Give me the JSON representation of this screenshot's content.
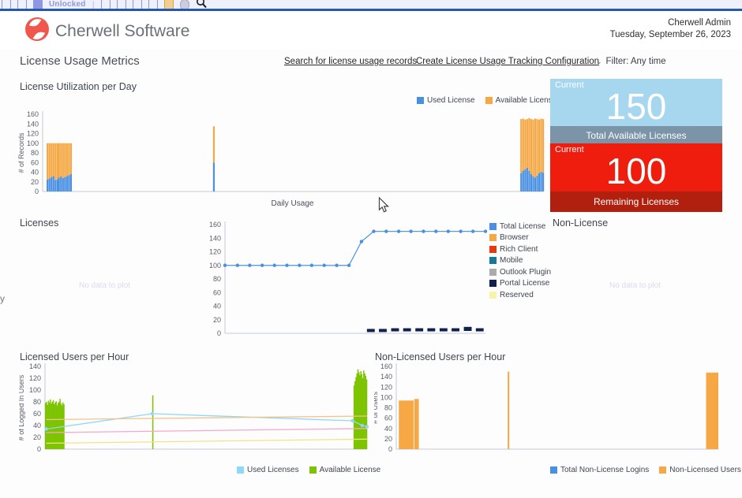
{
  "toolbar": {
    "unlocked_label": "Unlocked",
    "icons": [
      "document-icon",
      "trash-icon",
      "lock-icon",
      "scissors-icon",
      "copy-icon",
      "paste-icon",
      "columns-icon",
      "palette-icon",
      "globe-icon",
      "search-icon"
    ]
  },
  "header": {
    "brand": "Cherwell Software",
    "user": "Cherwell Admin",
    "date": "Tuesday, September 26, 2023"
  },
  "page": {
    "title": "License Usage Metrics",
    "links": [
      "Search for license usage records",
      "Create License Usage Tracking Configuration"
    ],
    "filter_label": "Filter: Any time"
  },
  "sections": {
    "utilization": "License Utilization per Day",
    "licenses": "Licenses",
    "non_license": "Non-License",
    "licensed_users": "Licensed Users per Hour",
    "non_licensed_users": "Non-Licensed Users per Hour"
  },
  "metrics": {
    "total_available": {
      "tag": "Current",
      "value": "150",
      "label": "Total Available Licenses",
      "bg": "#a6d7ef",
      "footer_bg": "#7b94a8"
    },
    "remaining": {
      "tag": "Current",
      "value": "100",
      "label": "Remaining Licenses",
      "bg": "#ee1d0d",
      "footer_bg": "#b1200e"
    }
  },
  "no_data_text": "No data to plot",
  "stray": {
    "glyph": "ᵠ",
    "y": "y"
  },
  "colors": {
    "accent_rule": "#2458b3",
    "used_blue": "#4a90e2",
    "available_orange": "#f5a843",
    "green": "#7dc400",
    "cyan": "#8ed8f8",
    "navy": "#12204f"
  },
  "chart_data": [
    {
      "id": "license-utilization",
      "type": "bar",
      "title": "License Utilization per Day",
      "xlabel": "Daily Usage",
      "ylabel": "# of Records",
      "ylim": [
        0,
        160
      ],
      "ytick_step": 20,
      "grid": false,
      "legend": [
        {
          "label": "Used License",
          "color": "#4a90e2"
        },
        {
          "label": "Available Licenses",
          "color": "#f5a843"
        }
      ],
      "stacked_bars": [
        {
          "pos": 0.008,
          "used": 25,
          "total": 100
        },
        {
          "pos": 0.012,
          "used": 27,
          "total": 100
        },
        {
          "pos": 0.016,
          "used": 30,
          "total": 100
        },
        {
          "pos": 0.02,
          "used": 32,
          "total": 100
        },
        {
          "pos": 0.024,
          "used": 24,
          "total": 100
        },
        {
          "pos": 0.028,
          "used": 25,
          "total": 100
        },
        {
          "pos": 0.031,
          "used": 29,
          "total": 100
        },
        {
          "pos": 0.035,
          "used": 31,
          "total": 100
        },
        {
          "pos": 0.039,
          "used": 28,
          "total": 100
        },
        {
          "pos": 0.043,
          "used": 30,
          "total": 100
        },
        {
          "pos": 0.047,
          "used": 32,
          "total": 100
        },
        {
          "pos": 0.051,
          "used": 34,
          "total": 100
        },
        {
          "pos": 0.055,
          "used": 36,
          "total": 100
        },
        {
          "pos": 0.341,
          "used": 60,
          "total": 135
        },
        {
          "pos": 0.956,
          "used": 38,
          "total": 150
        },
        {
          "pos": 0.96,
          "used": 43,
          "total": 151
        },
        {
          "pos": 0.964,
          "used": 46,
          "total": 149
        },
        {
          "pos": 0.968,
          "used": 49,
          "total": 150
        },
        {
          "pos": 0.972,
          "used": 43,
          "total": 152
        },
        {
          "pos": 0.976,
          "used": 36,
          "total": 150
        },
        {
          "pos": 0.98,
          "used": 31,
          "total": 149
        },
        {
          "pos": 0.984,
          "used": 29,
          "total": 151
        },
        {
          "pos": 0.988,
          "used": 33,
          "total": 150
        },
        {
          "pos": 0.992,
          "used": 38,
          "total": 149
        },
        {
          "pos": 0.996,
          "used": 41,
          "total": 151
        },
        {
          "pos": 1.0,
          "used": 39,
          "total": 150
        }
      ]
    },
    {
      "id": "licenses",
      "type": "line",
      "title": "Licenses",
      "ylim": [
        0,
        160
      ],
      "ytick_step": 20,
      "grid": false,
      "legend_position": "right",
      "legend": [
        {
          "label": "Total License",
          "color": "#4a90e2"
        },
        {
          "label": "Browser",
          "color": "#f5a843"
        },
        {
          "label": "Rich Client",
          "color": "#e8390e"
        },
        {
          "label": "Mobile",
          "color": "#17789e"
        },
        {
          "label": "Outlook Plugin",
          "color": "#ababab"
        },
        {
          "label": "Portal License",
          "color": "#12204f"
        },
        {
          "label": "Reserved",
          "color": "#f7f3a9"
        }
      ],
      "series": [
        {
          "name": "Total License",
          "color": "#5b9bd5",
          "type": "line",
          "marker": true,
          "points": [
            [
              0.0,
              100
            ],
            [
              0.048,
              100
            ],
            [
              0.095,
              100
            ],
            [
              0.143,
              100
            ],
            [
              0.19,
              100
            ],
            [
              0.238,
              100
            ],
            [
              0.286,
              100
            ],
            [
              0.333,
              100
            ],
            [
              0.381,
              100
            ],
            [
              0.429,
              100
            ],
            [
              0.476,
              100
            ],
            [
              0.524,
              135
            ],
            [
              0.571,
              150
            ],
            [
              0.619,
              150
            ],
            [
              0.667,
              150
            ],
            [
              0.714,
              150
            ],
            [
              0.762,
              150
            ],
            [
              0.81,
              150
            ],
            [
              0.857,
              150
            ],
            [
              0.905,
              150
            ],
            [
              0.952,
              150
            ],
            [
              1.0,
              150
            ]
          ]
        },
        {
          "name": "Portal License",
          "color": "#12204f",
          "type": "dashes",
          "dash_w": 0.03,
          "dashes": [
            {
              "pos": 0.545,
              "h": 3
            },
            {
              "pos": 0.591,
              "h": 3
            },
            {
              "pos": 0.638,
              "h": 4
            },
            {
              "pos": 0.684,
              "h": 4
            },
            {
              "pos": 0.731,
              "h": 4
            },
            {
              "pos": 0.777,
              "h": 4
            },
            {
              "pos": 0.824,
              "h": 4
            },
            {
              "pos": 0.87,
              "h": 4
            },
            {
              "pos": 0.917,
              "h": 6
            },
            {
              "pos": 0.963,
              "h": 4
            }
          ]
        }
      ]
    },
    {
      "id": "licensed-users",
      "type": "bar+line",
      "title": "Licensed Users per Hour",
      "ylabel": "# of Logged In Users",
      "ylim": [
        0,
        140
      ],
      "ytick_step": 20,
      "grid": false,
      "bar_color": "#7dc400",
      "legend": [
        {
          "label": "Used Licenses",
          "color": "#8ed8f8"
        },
        {
          "label": "Available License",
          "color": "#7dc400"
        }
      ],
      "bars": [
        {
          "pos": 0.0,
          "h": 78
        },
        {
          "pos": 0.003,
          "h": 80
        },
        {
          "pos": 0.006,
          "h": 75
        },
        {
          "pos": 0.009,
          "h": 82
        },
        {
          "pos": 0.012,
          "h": 79
        },
        {
          "pos": 0.015,
          "h": 84
        },
        {
          "pos": 0.018,
          "h": 77
        },
        {
          "pos": 0.021,
          "h": 80
        },
        {
          "pos": 0.024,
          "h": 83
        },
        {
          "pos": 0.027,
          "h": 76
        },
        {
          "pos": 0.03,
          "h": 79
        },
        {
          "pos": 0.033,
          "h": 81
        },
        {
          "pos": 0.036,
          "h": 74
        },
        {
          "pos": 0.039,
          "h": 78
        },
        {
          "pos": 0.042,
          "h": 80
        },
        {
          "pos": 0.045,
          "h": 85
        },
        {
          "pos": 0.048,
          "h": 77
        },
        {
          "pos": 0.051,
          "h": 74
        },
        {
          "pos": 0.054,
          "h": 79
        },
        {
          "pos": 0.057,
          "h": 76
        },
        {
          "pos": 0.333,
          "h": 91
        },
        {
          "pos": 0.958,
          "h": 108
        },
        {
          "pos": 0.961,
          "h": 115
        },
        {
          "pos": 0.964,
          "h": 122
        },
        {
          "pos": 0.967,
          "h": 128
        },
        {
          "pos": 0.97,
          "h": 135
        },
        {
          "pos": 0.973,
          "h": 130
        },
        {
          "pos": 0.976,
          "h": 125
        },
        {
          "pos": 0.979,
          "h": 132
        },
        {
          "pos": 0.982,
          "h": 127
        },
        {
          "pos": 0.985,
          "h": 120
        },
        {
          "pos": 0.988,
          "h": 133
        },
        {
          "pos": 0.991,
          "h": 128
        },
        {
          "pos": 0.994,
          "h": 124
        },
        {
          "pos": 0.997,
          "h": 118
        }
      ],
      "series": [
        {
          "name": "Used Licenses",
          "color": "#8ed8f8",
          "type": "line",
          "marker": true,
          "points": [
            [
              0.004,
              34
            ],
            [
              0.333,
              60
            ],
            [
              0.955,
              48
            ],
            [
              0.985,
              40
            ],
            [
              1.0,
              38
            ]
          ]
        },
        {
          "name": "series-pink",
          "color": "#f6a8c8",
          "type": "line",
          "points": [
            [
              0.004,
              28
            ],
            [
              1.0,
              35
            ]
          ]
        },
        {
          "name": "series-orange",
          "color": "#f6c289",
          "type": "line",
          "points": [
            [
              0.004,
              50
            ],
            [
              1.0,
              56
            ]
          ]
        },
        {
          "name": "series-yellow",
          "color": "#f2e388",
          "type": "line",
          "points": [
            [
              0.004,
              10
            ],
            [
              1.0,
              17
            ]
          ]
        }
      ]
    },
    {
      "id": "non-licensed-users",
      "type": "bar",
      "title": "Non-Licensed Users per Hour",
      "ylabel": "# of Users",
      "ylim": [
        0,
        160
      ],
      "ytick_step": 20,
      "grid": false,
      "bar_color": "#f5a843",
      "legend": [
        {
          "label": "Total Non-License Logins",
          "color": "#4a90e2"
        },
        {
          "label": "Non-Licensed Users",
          "color": "#f5a843"
        }
      ],
      "bars": [
        {
          "pos": 0.008,
          "w": 0.046,
          "h": 94
        },
        {
          "pos": 0.056,
          "w": 0.014,
          "h": 97
        },
        {
          "pos": 0.346,
          "w": 0.005,
          "h": 150
        },
        {
          "pos": 0.962,
          "w": 0.038,
          "h": 148
        }
      ]
    }
  ]
}
